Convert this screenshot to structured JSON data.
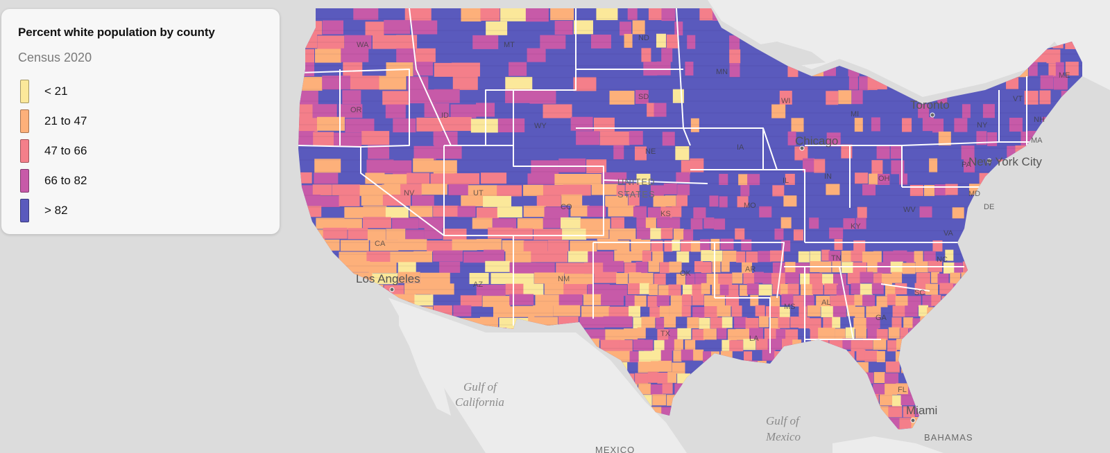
{
  "legend": {
    "title": "Percent white population by county",
    "subtitle": "Census 2020",
    "bins": [
      {
        "label": "< 21",
        "color": "#fbe89a"
      },
      {
        "label": "21 to 47",
        "color": "#fdb07a"
      },
      {
        "label": "47 to 66",
        "color": "#f47f8a"
      },
      {
        "label": "66 to 82",
        "color": "#c75aa8"
      },
      {
        "label": "> 82",
        "color": "#5a5abd"
      }
    ]
  },
  "map": {
    "colors": {
      "land": "#ececec",
      "water": "#dcdcdc",
      "state_border": "#ffffff",
      "neighbor_land": "#ececec"
    },
    "places": [
      {
        "name": "Los Angeles",
        "kind": "city"
      },
      {
        "name": "Chicago",
        "kind": "city"
      },
      {
        "name": "New York City",
        "kind": "city"
      },
      {
        "name": "Toronto",
        "kind": "city"
      },
      {
        "name": "Miami",
        "kind": "city"
      }
    ],
    "country_labels": [
      "UNITED",
      "STATES",
      "MEXICO",
      "BAHAMAS"
    ],
    "water_labels": [
      {
        "line1": "Gulf of",
        "line2": "California"
      },
      {
        "line1": "Gulf of",
        "line2": "Mexico"
      }
    ],
    "states": [
      "WA",
      "OR",
      "CA",
      "NV",
      "ID",
      "MT",
      "WY",
      "UT",
      "AZ",
      "CO",
      "NM",
      "ND",
      "SD",
      "NE",
      "KS",
      "OK",
      "TX",
      "MN",
      "IA",
      "MO",
      "AR",
      "LA",
      "WI",
      "IL",
      "MI",
      "IN",
      "OH",
      "KY",
      "TN",
      "MS",
      "AL",
      "GA",
      "FL",
      "SC",
      "NC",
      "VA",
      "WV",
      "PA",
      "NY",
      "VT",
      "NH",
      "ME",
      "MA",
      "MD",
      "DE"
    ]
  }
}
